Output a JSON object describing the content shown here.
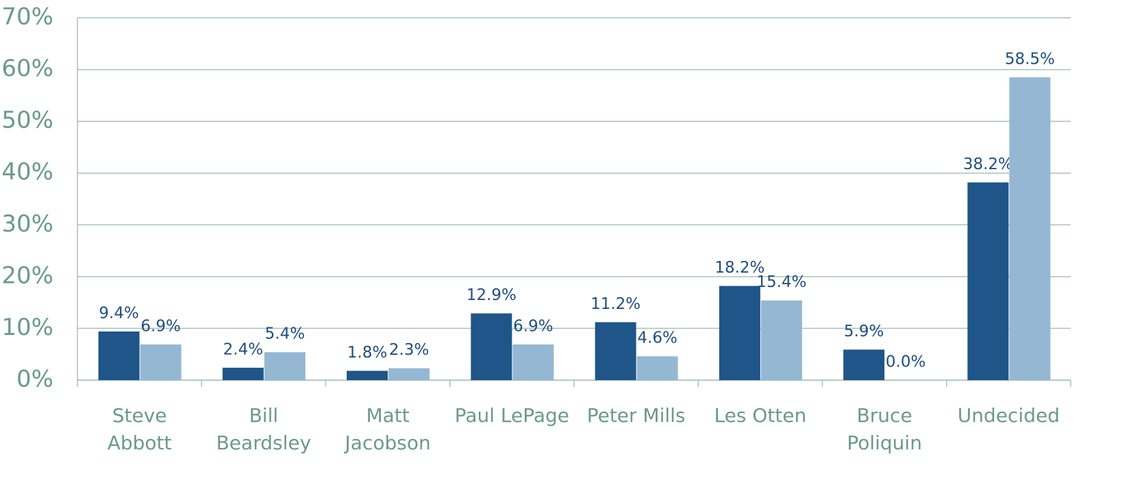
{
  "chart_data": {
    "type": "bar",
    "categories": [
      "Steve\nAbbott",
      "Bill\nBeardsley",
      "Matt\nJacobson",
      "Paul LePage",
      "Peter Mills",
      "Les Otten",
      "Bruce\nPoliquin",
      "Undecided"
    ],
    "series": [
      {
        "color": "#1f5588",
        "values": [
          9.4,
          2.4,
          1.8,
          12.9,
          11.2,
          18.2,
          5.9,
          38.2
        ],
        "value_labels": [
          "9.4%",
          "2.4%",
          "1.8%",
          "12.9%",
          "11.2%",
          "18.2%",
          "5.9%",
          "38.2%"
        ]
      },
      {
        "color": "#94b8d4",
        "values": [
          6.9,
          5.4,
          2.3,
          6.9,
          4.6,
          15.4,
          0.0,
          58.5
        ],
        "value_labels": [
          "6.9%",
          "5.4%",
          "2.3%",
          "6.9%",
          "4.6%",
          "15.4%",
          "0.0%",
          "58.5%"
        ]
      }
    ],
    "ylim": [
      0,
      70
    ],
    "yticks": [
      {
        "value": 0,
        "label": "0%"
      },
      {
        "value": 10,
        "label": "10%"
      },
      {
        "value": 20,
        "label": "20%"
      },
      {
        "value": 30,
        "label": "30%"
      },
      {
        "value": 40,
        "label": "40%"
      },
      {
        "value": 50,
        "label": "50%"
      },
      {
        "value": 60,
        "label": "60%"
      },
      {
        "value": 70,
        "label": "70%"
      }
    ],
    "grid": true
  }
}
